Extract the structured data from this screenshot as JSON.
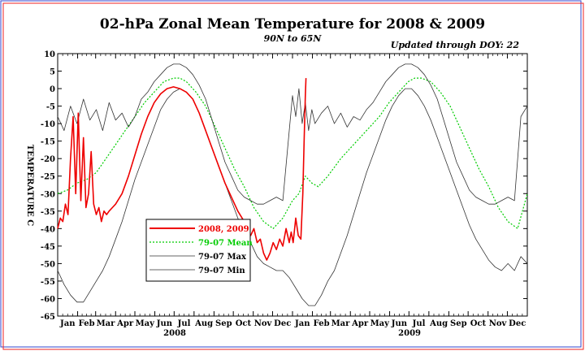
{
  "chart_data": {
    "type": "line",
    "title": "02-hPa Zonal Mean Temperature for 2008 & 2009",
    "subtitle": "90N to 65N",
    "annotation": "Updated through DOY:  22",
    "ylabel": "TEMPERATURE C",
    "xlabel": "",
    "ylim": [
      -65,
      10
    ],
    "yticks": [
      10,
      5,
      0,
      -5,
      -10,
      -15,
      -20,
      -25,
      -30,
      -35,
      -40,
      -45,
      -50,
      -55,
      -60,
      -65
    ],
    "xlim": [
      0,
      730
    ],
    "month_labels": [
      "Jan",
      "Feb",
      "Mar",
      "Apr",
      "May",
      "Jun",
      "Jul",
      "Aug",
      "Sep",
      "Oct",
      "Nov",
      "Dec",
      "Jan",
      "Feb",
      "Mar",
      "Apr",
      "May",
      "Jun",
      "Jul",
      "Aug",
      "Sep",
      "Oct",
      "Nov",
      "Dec"
    ],
    "year_labels": [
      {
        "text": "2008",
        "day": 182
      },
      {
        "text": "2009",
        "day": 547
      }
    ],
    "grid": false,
    "legend_position": "lower-left",
    "series": [
      {
        "name": "2008, 2009",
        "color": "#ee0000",
        "style": "solid",
        "width": 1.6,
        "x": [
          0,
          4,
          8,
          12,
          16,
          20,
          24,
          28,
          32,
          36,
          40,
          44,
          48,
          52,
          56,
          60,
          64,
          68,
          72,
          76,
          80,
          85,
          90,
          100,
          110,
          120,
          130,
          140,
          150,
          160,
          170,
          180,
          190,
          200,
          210,
          220,
          230,
          240,
          250,
          260,
          270,
          280,
          290,
          300,
          305,
          310,
          315,
          320,
          325,
          330,
          335,
          340,
          345,
          350,
          355,
          360,
          363,
          366,
          370,
          374,
          378,
          381,
          383,
          385,
          386
        ],
        "y": [
          -40,
          -37,
          -38,
          -33,
          -36,
          -20,
          -8,
          -30,
          -7,
          -32,
          -14,
          -34,
          -30,
          -18,
          -33,
          -36,
          -34,
          -38,
          -35,
          -36,
          -35,
          -34,
          -33,
          -30,
          -25,
          -19,
          -13,
          -8,
          -4,
          -1.5,
          0,
          0.5,
          0,
          -1,
          -3,
          -7,
          -12,
          -17,
          -22,
          -27,
          -31,
          -35,
          -38,
          -42,
          -40,
          -44,
          -43,
          -47,
          -49,
          -47,
          -44,
          -46,
          -43,
          -45,
          -40,
          -44,
          -41,
          -44,
          -37,
          -42,
          -43,
          -30,
          -15,
          -2,
          3
        ]
      },
      {
        "name": "79-07 Mean",
        "color": "#00cc00",
        "style": "dotted",
        "width": 1.2,
        "x": [
          0,
          15,
          30,
          45,
          60,
          75,
          90,
          105,
          120,
          135,
          150,
          165,
          180,
          190,
          200,
          215,
          230,
          245,
          260,
          275,
          290,
          305,
          320,
          335,
          350,
          365,
          375,
          385,
          395,
          405,
          420,
          440,
          460,
          480,
          500,
          515,
          530,
          545,
          555,
          565,
          580,
          595,
          610,
          625,
          640,
          655,
          670,
          685,
          700,
          715,
          730
        ],
        "y": [
          -30,
          -29,
          -27,
          -26,
          -24,
          -20,
          -16,
          -12,
          -8,
          -4,
          -1,
          2,
          3,
          3,
          2,
          -1,
          -5,
          -11,
          -17,
          -23,
          -28,
          -34,
          -38,
          -40,
          -37,
          -32,
          -30,
          -25,
          -27,
          -28,
          -25,
          -20,
          -16,
          -12,
          -8,
          -4,
          -1,
          2,
          3,
          3,
          2,
          -1,
          -5,
          -11,
          -17,
          -23,
          -28,
          -34,
          -38,
          -40,
          -30
        ]
      },
      {
        "name": "79-07 Max",
        "color": "#333333",
        "style": "solid",
        "width": 0.8,
        "x": [
          0,
          10,
          20,
          30,
          40,
          50,
          60,
          70,
          80,
          90,
          100,
          110,
          120,
          130,
          140,
          150,
          160,
          170,
          180,
          190,
          200,
          210,
          220,
          230,
          240,
          250,
          260,
          270,
          280,
          290,
          300,
          310,
          320,
          330,
          340,
          350,
          360,
          365,
          370,
          375,
          380,
          385,
          390,
          395,
          400,
          410,
          420,
          430,
          440,
          450,
          460,
          470,
          480,
          490,
          500,
          510,
          520,
          530,
          540,
          550,
          560,
          570,
          580,
          590,
          600,
          610,
          620,
          630,
          640,
          650,
          660,
          670,
          680,
          690,
          700,
          710,
          720,
          730
        ],
        "y": [
          -8,
          -12,
          -5,
          -10,
          -3,
          -9,
          -6,
          -12,
          -4,
          -9,
          -7,
          -11,
          -8,
          -3,
          -1,
          2,
          4,
          6,
          7,
          7,
          6,
          4,
          1,
          -3,
          -9,
          -15,
          -21,
          -25,
          -29,
          -31,
          -32,
          -33,
          -33,
          -32,
          -31,
          -32,
          -12,
          -2,
          -8,
          0,
          -10,
          -4,
          -12,
          -6,
          -10,
          -7,
          -5,
          -10,
          -7,
          -11,
          -8,
          -9,
          -6,
          -4,
          -1,
          2,
          4,
          6,
          7,
          7,
          6,
          4,
          1,
          -3,
          -9,
          -15,
          -21,
          -25,
          -29,
          -31,
          -32,
          -33,
          -33,
          -32,
          -31,
          -32,
          -8,
          -5
        ]
      },
      {
        "name": "79-07 Min",
        "color": "#333333",
        "style": "solid",
        "width": 0.8,
        "x": [
          0,
          10,
          20,
          30,
          40,
          50,
          60,
          70,
          80,
          90,
          100,
          110,
          120,
          130,
          140,
          150,
          160,
          170,
          180,
          190,
          200,
          210,
          220,
          230,
          240,
          250,
          260,
          270,
          280,
          290,
          300,
          310,
          320,
          330,
          340,
          350,
          360,
          370,
          380,
          390,
          400,
          410,
          420,
          430,
          440,
          450,
          460,
          470,
          480,
          490,
          500,
          510,
          520,
          530,
          540,
          550,
          560,
          570,
          580,
          590,
          600,
          610,
          620,
          630,
          640,
          650,
          660,
          670,
          680,
          690,
          700,
          710,
          720,
          730
        ],
        "y": [
          -52,
          -56,
          -59,
          -61,
          -61,
          -58,
          -55,
          -52,
          -48,
          -43,
          -38,
          -32,
          -26,
          -21,
          -16,
          -11,
          -6,
          -3,
          -1,
          0,
          -1,
          -3,
          -7,
          -12,
          -17,
          -22,
          -27,
          -32,
          -37,
          -41,
          -44,
          -48,
          -50,
          -51,
          -52,
          -52,
          -54,
          -57,
          -60,
          -62,
          -62,
          -59,
          -55,
          -52,
          -47,
          -42,
          -36,
          -30,
          -24,
          -19,
          -14,
          -9,
          -5,
          -2,
          0,
          0,
          -2,
          -5,
          -9,
          -14,
          -19,
          -24,
          -29,
          -34,
          -39,
          -43,
          -46,
          -49,
          -51,
          -52,
          -50,
          -52,
          -48,
          -50
        ]
      }
    ]
  }
}
